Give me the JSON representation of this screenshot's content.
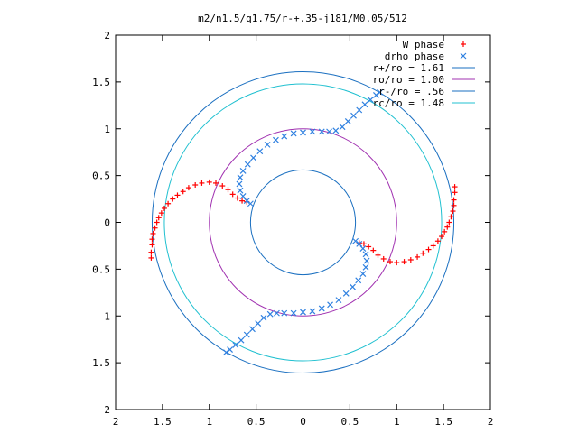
{
  "chart_data": {
    "type": "scatter",
    "title": "m2/n1.5/q1.75/r-+.35-j181/M0.05/512",
    "xlabel": "",
    "ylabel": "",
    "xlim": [
      -2,
      2
    ],
    "ylim": [
      -2,
      2
    ],
    "x_ticks": [
      {
        "value": -2,
        "label": "2"
      },
      {
        "value": -1.5,
        "label": "1.5"
      },
      {
        "value": -1,
        "label": "1"
      },
      {
        "value": -0.5,
        "label": "0.5"
      },
      {
        "value": 0,
        "label": "0"
      },
      {
        "value": 0.5,
        "label": "0.5"
      },
      {
        "value": 1,
        "label": "1"
      },
      {
        "value": 1.5,
        "label": "1.5"
      },
      {
        "value": 2,
        "label": "2"
      }
    ],
    "y_ticks": [
      {
        "value": 2,
        "label": "2"
      },
      {
        "value": 1.5,
        "label": "1.5"
      },
      {
        "value": 1,
        "label": "1"
      },
      {
        "value": 0.5,
        "label": "0.5"
      },
      {
        "value": 0,
        "label": "0"
      },
      {
        "value": -0.5,
        "label": "0.5"
      },
      {
        "value": -1,
        "label": "1"
      },
      {
        "value": -1.5,
        "label": "1.5"
      },
      {
        "value": -2,
        "label": "2"
      }
    ],
    "grid": false,
    "legend_position": "top-right",
    "series": [
      {
        "name": "W phase",
        "kind": "points",
        "marker": "plus",
        "color": "#ff0000",
        "points": [
          [
            -1.62,
            -0.38
          ],
          [
            -1.62,
            -0.32
          ],
          [
            -1.61,
            -0.24
          ],
          [
            -1.61,
            -0.18
          ],
          [
            -1.6,
            -0.12
          ],
          [
            -1.58,
            -0.06
          ],
          [
            -1.56,
            0.0
          ],
          [
            -1.54,
            0.05
          ],
          [
            -1.51,
            0.1
          ],
          [
            -1.48,
            0.15
          ],
          [
            -1.44,
            0.2
          ],
          [
            -1.39,
            0.25
          ],
          [
            -1.34,
            0.29
          ],
          [
            -1.28,
            0.33
          ],
          [
            -1.22,
            0.37
          ],
          [
            -1.15,
            0.4
          ],
          [
            -1.08,
            0.42
          ],
          [
            -1.0,
            0.43
          ],
          [
            -0.93,
            0.42
          ],
          [
            -0.86,
            0.39
          ],
          [
            -0.8,
            0.35
          ],
          [
            -0.75,
            0.3
          ],
          [
            -0.7,
            0.26
          ],
          [
            -0.65,
            0.23
          ],
          [
            -0.6,
            0.22
          ],
          [
            1.62,
            0.38
          ],
          [
            1.62,
            0.32
          ],
          [
            1.61,
            0.24
          ],
          [
            1.61,
            0.18
          ],
          [
            1.6,
            0.12
          ],
          [
            1.58,
            0.06
          ],
          [
            1.56,
            0.0
          ],
          [
            1.54,
            -0.05
          ],
          [
            1.51,
            -0.1
          ],
          [
            1.48,
            -0.15
          ],
          [
            1.44,
            -0.2
          ],
          [
            1.39,
            -0.25
          ],
          [
            1.34,
            -0.29
          ],
          [
            1.28,
            -0.33
          ],
          [
            1.22,
            -0.37
          ],
          [
            1.15,
            -0.4
          ],
          [
            1.08,
            -0.42
          ],
          [
            1.0,
            -0.43
          ],
          [
            0.93,
            -0.42
          ],
          [
            0.86,
            -0.39
          ],
          [
            0.8,
            -0.35
          ],
          [
            0.75,
            -0.3
          ],
          [
            0.7,
            -0.26
          ],
          [
            0.65,
            -0.23
          ],
          [
            0.6,
            -0.22
          ]
        ]
      },
      {
        "name": "drho phase",
        "kind": "points",
        "marker": "cross",
        "color": "#2f80e0",
        "points": [
          [
            -0.56,
            0.2
          ],
          [
            -0.6,
            0.23
          ],
          [
            -0.64,
            0.28
          ],
          [
            -0.67,
            0.34
          ],
          [
            -0.68,
            0.41
          ],
          [
            -0.67,
            0.48
          ],
          [
            -0.64,
            0.55
          ],
          [
            -0.59,
            0.62
          ],
          [
            -0.53,
            0.69
          ],
          [
            -0.46,
            0.76
          ],
          [
            -0.38,
            0.83
          ],
          [
            -0.29,
            0.88
          ],
          [
            -0.2,
            0.92
          ],
          [
            -0.1,
            0.95
          ],
          [
            0.0,
            0.96
          ],
          [
            0.1,
            0.97
          ],
          [
            0.2,
            0.97
          ],
          [
            0.28,
            0.97
          ],
          [
            0.35,
            0.98
          ],
          [
            0.42,
            1.02
          ],
          [
            0.48,
            1.08
          ],
          [
            0.54,
            1.14
          ],
          [
            0.6,
            1.2
          ],
          [
            0.66,
            1.26
          ],
          [
            0.72,
            1.31
          ],
          [
            0.78,
            1.36
          ],
          [
            0.82,
            1.39
          ],
          [
            0.56,
            -0.2
          ],
          [
            0.6,
            -0.23
          ],
          [
            0.64,
            -0.28
          ],
          [
            0.67,
            -0.34
          ],
          [
            0.68,
            -0.41
          ],
          [
            0.67,
            -0.48
          ],
          [
            0.64,
            -0.55
          ],
          [
            0.59,
            -0.62
          ],
          [
            0.53,
            -0.69
          ],
          [
            0.46,
            -0.76
          ],
          [
            0.38,
            -0.83
          ],
          [
            0.29,
            -0.88
          ],
          [
            0.2,
            -0.92
          ],
          [
            0.1,
            -0.95
          ],
          [
            0.0,
            -0.96
          ],
          [
            -0.1,
            -0.97
          ],
          [
            -0.2,
            -0.97
          ],
          [
            -0.28,
            -0.97
          ],
          [
            -0.35,
            -0.98
          ],
          [
            -0.42,
            -1.02
          ],
          [
            -0.48,
            -1.08
          ],
          [
            -0.54,
            -1.14
          ],
          [
            -0.6,
            -1.2
          ],
          [
            -0.66,
            -1.26
          ],
          [
            -0.72,
            -1.31
          ],
          [
            -0.78,
            -1.36
          ],
          [
            -0.82,
            -1.39
          ]
        ]
      },
      {
        "name": "r+/ro = 1.61",
        "kind": "circle",
        "radius": 1.61,
        "color": "#1a6fc0"
      },
      {
        "name": "ro/ro = 1.00",
        "kind": "circle",
        "radius": 1.0,
        "color": "#a030b0"
      },
      {
        "name": "r-/ro = .56",
        "kind": "circle",
        "radius": 0.56,
        "color": "#1a6fc0"
      },
      {
        "name": "rc/ro = 1.48",
        "kind": "circle",
        "radius": 1.48,
        "color": "#20c0d0"
      }
    ]
  }
}
